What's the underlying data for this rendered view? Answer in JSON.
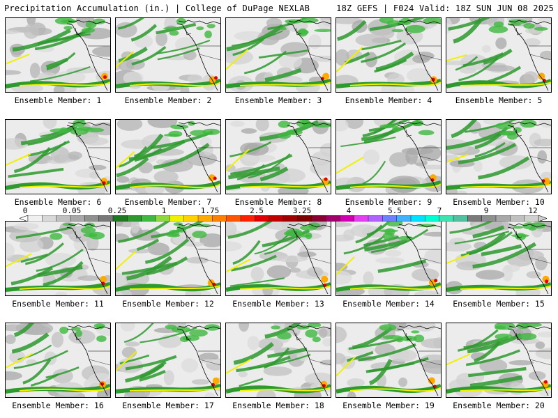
{
  "header": {
    "title_left": "Precipitation Accumulation (in.) | College of DuPage NEXLAB",
    "title_right": "18Z GEFS | F024 Valid: 18Z SUN JUN 08 2025"
  },
  "members": [
    {
      "label": "Ensemble Member: 1"
    },
    {
      "label": "Ensemble Member: 2"
    },
    {
      "label": "Ensemble Member: 3"
    },
    {
      "label": "Ensemble Member: 4"
    },
    {
      "label": "Ensemble Member: 5"
    },
    {
      "label": "Ensemble Member: 6"
    },
    {
      "label": "Ensemble Member: 7"
    },
    {
      "label": "Ensemble Member: 8"
    },
    {
      "label": "Ensemble Member: 9"
    },
    {
      "label": "Ensemble Member: 10"
    },
    {
      "label": "Ensemble Member: 11"
    },
    {
      "label": "Ensemble Member: 12"
    },
    {
      "label": "Ensemble Member: 13"
    },
    {
      "label": "Ensemble Member: 14"
    },
    {
      "label": "Ensemble Member: 15"
    },
    {
      "label": "Ensemble Member: 16"
    },
    {
      "label": "Ensemble Member: 17"
    },
    {
      "label": "Ensemble Member: 18"
    },
    {
      "label": "Ensemble Member: 19"
    },
    {
      "label": "Ensemble Member: 20"
    }
  ],
  "legend": {
    "labels": [
      "0",
      "0.05",
      "0.25",
      "1",
      "1.75",
      "2.5",
      "3.25",
      "4",
      "5.5",
      "7",
      "9",
      "12"
    ],
    "colors": [
      "#f0f0f0",
      "#d8d8d8",
      "#c0c0c0",
      "#a8a8a8",
      "#909090",
      "#787878",
      "#1e7a1e",
      "#2e9a2e",
      "#3fb83f",
      "#8fd63f",
      "#f0f000",
      "#ffd200",
      "#ffaa00",
      "#ff8000",
      "#ff5500",
      "#ff2000",
      "#e00000",
      "#c00000",
      "#a00000",
      "#800000",
      "#8a0030",
      "#a0006a",
      "#d000b0",
      "#e040f0",
      "#b060ff",
      "#6f7fff",
      "#40b0ff",
      "#00e0ff",
      "#00ffd0",
      "#40e0b0",
      "#50c0a0",
      "#7a7a7a",
      "#909090",
      "#a8a8a8",
      "#c0c0c0",
      "#d0d0d0"
    ]
  }
}
